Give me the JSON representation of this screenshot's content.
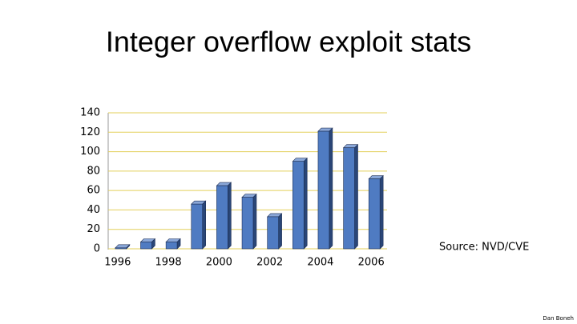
{
  "chart_data": {
    "type": "bar",
    "title": "Integer overflow exploit stats",
    "categories": [
      "1996",
      null,
      "1998",
      null,
      "2000",
      null,
      "2002",
      null,
      "2004",
      null,
      "2006"
    ],
    "values": [
      1,
      7,
      7,
      46,
      65,
      53,
      33,
      90,
      121,
      104,
      72
    ],
    "color": "#4f7bc2",
    "ylim": [
      0,
      140
    ],
    "yticks": [
      0,
      20,
      40,
      60,
      80,
      100,
      120,
      140
    ],
    "grid": true
  },
  "source": "Source:  NVD/CVE",
  "author": "Dan Boneh"
}
